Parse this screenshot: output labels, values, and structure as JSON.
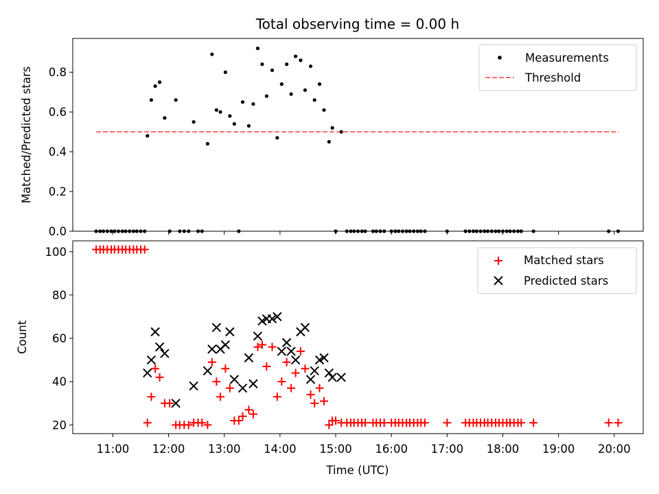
{
  "chart_data": [
    {
      "type": "scatter",
      "title": "Total observing time = 0.00 h",
      "xlabel": "",
      "ylabel": "Matched/Predicted stars",
      "xlim": [
        10.28,
        20.52
      ],
      "ylim": [
        0.0,
        0.97
      ],
      "yticks": [
        0.0,
        0.2,
        0.4,
        0.6,
        0.8
      ],
      "ytick_labels": [
        "0.0",
        "0.2",
        "0.4",
        "0.6",
        "0.8"
      ],
      "grid": false,
      "legend_position": "upper right",
      "legend": [
        {
          "label": "Measurements",
          "marker": "dot",
          "color": "#000000"
        },
        {
          "label": "Threshold",
          "marker": "dashed-line",
          "color": "#ff6b6b"
        }
      ],
      "threshold": {
        "name": "Threshold",
        "value": 0.5,
        "x_range": [
          10.7,
          20.08
        ],
        "color": "#ff6b6b"
      },
      "series": [
        {
          "name": "Measurements",
          "color": "#000000",
          "points": [
            [
              10.7,
              0
            ],
            [
              10.77,
              0
            ],
            [
              10.83,
              0
            ],
            [
              10.9,
              0
            ],
            [
              10.97,
              0
            ],
            [
              11.03,
              0
            ],
            [
              11.1,
              0
            ],
            [
              11.17,
              0
            ],
            [
              11.23,
              0
            ],
            [
              11.3,
              0
            ],
            [
              11.37,
              0
            ],
            [
              11.43,
              0
            ],
            [
              11.5,
              0
            ],
            [
              11.57,
              0
            ],
            [
              11.62,
              0.48
            ],
            [
              11.69,
              0.66
            ],
            [
              11.76,
              0.73
            ],
            [
              11.84,
              0.75
            ],
            [
              11.93,
              0.57
            ],
            [
              12.02,
              0
            ],
            [
              12.13,
              0.66
            ],
            [
              12.2,
              0
            ],
            [
              12.28,
              0
            ],
            [
              12.36,
              0
            ],
            [
              12.45,
              0.55
            ],
            [
              12.53,
              0
            ],
            [
              12.6,
              0
            ],
            [
              12.7,
              0.44
            ],
            [
              12.78,
              0.89
            ],
            [
              12.86,
              0.61
            ],
            [
              12.93,
              0.6
            ],
            [
              13.02,
              0.8
            ],
            [
              13.1,
              0.58
            ],
            [
              13.18,
              0.54
            ],
            [
              13.26,
              0
            ],
            [
              13.33,
              0.65
            ],
            [
              13.44,
              0.53
            ],
            [
              13.52,
              0.64
            ],
            [
              13.6,
              0.92
            ],
            [
              13.68,
              0.84
            ],
            [
              13.76,
              0.68
            ],
            [
              13.86,
              0.81
            ],
            [
              13.95,
              0.47
            ],
            [
              14.03,
              0.74
            ],
            [
              14.12,
              0.84
            ],
            [
              14.2,
              0.69
            ],
            [
              14.28,
              0.88
            ],
            [
              14.37,
              0.86
            ],
            [
              14.45,
              0.71
            ],
            [
              14.55,
              0.83
            ],
            [
              14.62,
              0.66
            ],
            [
              14.71,
              0.74
            ],
            [
              14.79,
              0.61
            ],
            [
              14.88,
              0.45
            ],
            [
              14.94,
              0.52
            ],
            [
              15.0,
              0
            ],
            [
              15.1,
              0.5
            ],
            [
              15.2,
              0
            ],
            [
              15.27,
              0
            ],
            [
              15.33,
              0
            ],
            [
              15.4,
              0
            ],
            [
              15.47,
              0
            ],
            [
              15.53,
              0
            ],
            [
              15.67,
              0
            ],
            [
              15.73,
              0
            ],
            [
              15.8,
              0
            ],
            [
              15.87,
              0
            ],
            [
              16.0,
              0
            ],
            [
              16.07,
              0
            ],
            [
              16.13,
              0
            ],
            [
              16.2,
              0
            ],
            [
              16.27,
              0
            ],
            [
              16.33,
              0
            ],
            [
              16.4,
              0
            ],
            [
              16.47,
              0
            ],
            [
              16.53,
              0
            ],
            [
              16.6,
              0
            ],
            [
              17.0,
              0
            ],
            [
              17.33,
              0
            ],
            [
              17.4,
              0
            ],
            [
              17.47,
              0
            ],
            [
              17.53,
              0
            ],
            [
              17.6,
              0
            ],
            [
              17.67,
              0
            ],
            [
              17.73,
              0
            ],
            [
              17.8,
              0
            ],
            [
              17.87,
              0
            ],
            [
              17.93,
              0
            ],
            [
              18.0,
              0
            ],
            [
              18.07,
              0
            ],
            [
              18.13,
              0
            ],
            [
              18.2,
              0
            ],
            [
              18.27,
              0
            ],
            [
              18.33,
              0
            ],
            [
              18.55,
              0
            ],
            [
              19.9,
              0
            ],
            [
              20.07,
              0
            ]
          ]
        }
      ]
    },
    {
      "type": "scatter",
      "title": "",
      "xlabel": "Time (UTC)",
      "ylabel": "Count",
      "xlim": [
        10.28,
        20.52
      ],
      "ylim": [
        16,
        105
      ],
      "yticks": [
        20,
        40,
        60,
        80,
        100
      ],
      "ytick_labels": [
        "20",
        "40",
        "60",
        "80",
        "100"
      ],
      "xticks": [
        11,
        12,
        13,
        14,
        15,
        16,
        17,
        18,
        19,
        20
      ],
      "xtick_labels": [
        "11:00",
        "12:00",
        "13:00",
        "14:00",
        "15:00",
        "16:00",
        "17:00",
        "18:00",
        "19:00",
        "20:00"
      ],
      "grid": false,
      "legend_position": "upper right",
      "legend": [
        {
          "label": "Matched stars",
          "marker": "plus",
          "color": "#ff0000"
        },
        {
          "label": "Predicted stars",
          "marker": "x",
          "color": "#000000"
        }
      ],
      "series": [
        {
          "name": "Matched stars",
          "marker": "plus",
          "color": "#ff0000",
          "points": [
            [
              10.7,
              101
            ],
            [
              10.77,
              101
            ],
            [
              10.83,
              101
            ],
            [
              10.9,
              101
            ],
            [
              10.97,
              101
            ],
            [
              11.03,
              101
            ],
            [
              11.1,
              101
            ],
            [
              11.17,
              101
            ],
            [
              11.23,
              101
            ],
            [
              11.3,
              101
            ],
            [
              11.37,
              101
            ],
            [
              11.43,
              101
            ],
            [
              11.5,
              101
            ],
            [
              11.57,
              101
            ],
            [
              11.62,
              21
            ],
            [
              11.69,
              33
            ],
            [
              11.76,
              46
            ],
            [
              11.84,
              42
            ],
            [
              11.93,
              30
            ],
            [
              12.02,
              30
            ],
            [
              12.13,
              20
            ],
            [
              12.2,
              20
            ],
            [
              12.28,
              20
            ],
            [
              12.36,
              20
            ],
            [
              12.45,
              21
            ],
            [
              12.53,
              21
            ],
            [
              12.6,
              21
            ],
            [
              12.7,
              20
            ],
            [
              12.78,
              49
            ],
            [
              12.86,
              40
            ],
            [
              12.93,
              33
            ],
            [
              13.02,
              46
            ],
            [
              13.1,
              37
            ],
            [
              13.18,
              22
            ],
            [
              13.26,
              22
            ],
            [
              13.33,
              24
            ],
            [
              13.44,
              27
            ],
            [
              13.52,
              25
            ],
            [
              13.6,
              56
            ],
            [
              13.68,
              57
            ],
            [
              13.76,
              47
            ],
            [
              13.86,
              56
            ],
            [
              13.95,
              33
            ],
            [
              14.03,
              40
            ],
            [
              14.12,
              49
            ],
            [
              14.2,
              37
            ],
            [
              14.28,
              44
            ],
            [
              14.37,
              54
            ],
            [
              14.45,
              46
            ],
            [
              14.55,
              34
            ],
            [
              14.62,
              30
            ],
            [
              14.71,
              37
            ],
            [
              14.79,
              31
            ],
            [
              14.88,
              20
            ],
            [
              14.94,
              22
            ],
            [
              15.0,
              22
            ],
            [
              15.1,
              21
            ],
            [
              15.2,
              21
            ],
            [
              15.27,
              21
            ],
            [
              15.33,
              21
            ],
            [
              15.4,
              21
            ],
            [
              15.47,
              21
            ],
            [
              15.53,
              21
            ],
            [
              15.67,
              21
            ],
            [
              15.73,
              21
            ],
            [
              15.8,
              21
            ],
            [
              15.87,
              21
            ],
            [
              16.0,
              21
            ],
            [
              16.07,
              21
            ],
            [
              16.13,
              21
            ],
            [
              16.2,
              21
            ],
            [
              16.27,
              21
            ],
            [
              16.33,
              21
            ],
            [
              16.4,
              21
            ],
            [
              16.47,
              21
            ],
            [
              16.53,
              21
            ],
            [
              16.6,
              21
            ],
            [
              17.0,
              21
            ],
            [
              17.33,
              21
            ],
            [
              17.4,
              21
            ],
            [
              17.47,
              21
            ],
            [
              17.53,
              21
            ],
            [
              17.6,
              21
            ],
            [
              17.67,
              21
            ],
            [
              17.73,
              21
            ],
            [
              17.8,
              21
            ],
            [
              17.87,
              21
            ],
            [
              17.93,
              21
            ],
            [
              18.0,
              21
            ],
            [
              18.07,
              21
            ],
            [
              18.13,
              21
            ],
            [
              18.2,
              21
            ],
            [
              18.27,
              21
            ],
            [
              18.33,
              21
            ],
            [
              18.55,
              21
            ],
            [
              19.9,
              21
            ],
            [
              20.07,
              21
            ]
          ]
        },
        {
          "name": "Predicted stars",
          "marker": "x",
          "color": "#000000",
          "points": [
            [
              11.62,
              44
            ],
            [
              11.69,
              50
            ],
            [
              11.76,
              63
            ],
            [
              11.84,
              56
            ],
            [
              11.93,
              53
            ],
            [
              12.13,
              30
            ],
            [
              12.45,
              38
            ],
            [
              12.7,
              45
            ],
            [
              12.78,
              55
            ],
            [
              12.86,
              65
            ],
            [
              12.93,
              55
            ],
            [
              13.02,
              57
            ],
            [
              13.1,
              63
            ],
            [
              13.18,
              41
            ],
            [
              13.33,
              37
            ],
            [
              13.44,
              51
            ],
            [
              13.52,
              39
            ],
            [
              13.6,
              61
            ],
            [
              13.68,
              68
            ],
            [
              13.76,
              69
            ],
            [
              13.86,
              69
            ],
            [
              13.95,
              70
            ],
            [
              14.03,
              54
            ],
            [
              14.12,
              58
            ],
            [
              14.2,
              54
            ],
            [
              14.28,
              50
            ],
            [
              14.37,
              63
            ],
            [
              14.45,
              65
            ],
            [
              14.55,
              41
            ],
            [
              14.62,
              45
            ],
            [
              14.71,
              50
            ],
            [
              14.79,
              51
            ],
            [
              14.88,
              44
            ],
            [
              14.94,
              42
            ],
            [
              15.1,
              42
            ]
          ]
        }
      ]
    }
  ]
}
